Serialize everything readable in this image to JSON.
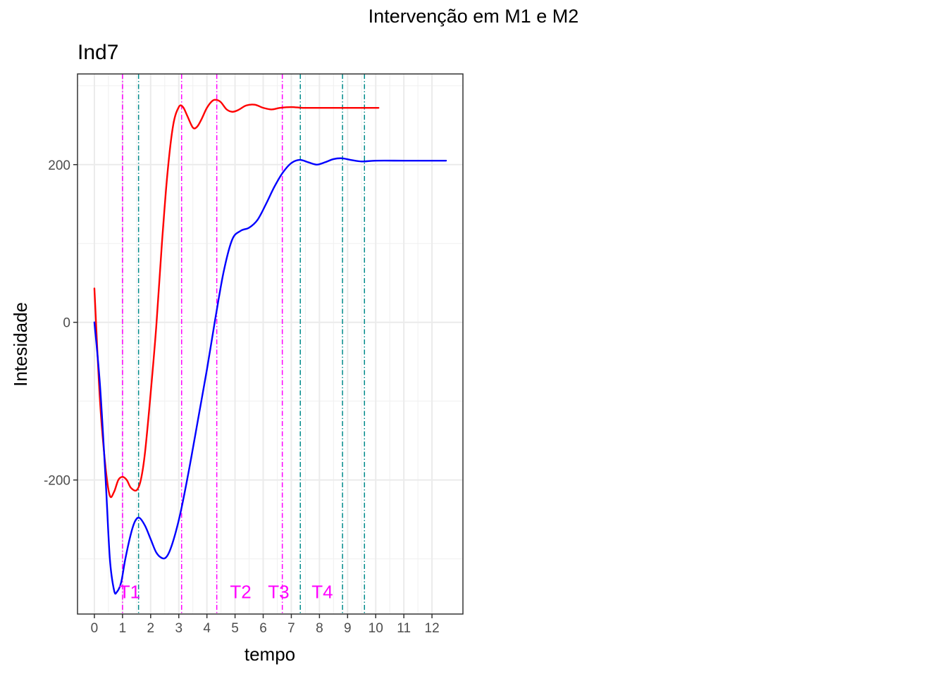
{
  "suptitle": "Intervenção em M1 e M2",
  "chart_data": {
    "type": "line",
    "title": "Ind7",
    "xlabel": "tempo",
    "ylabel": "Intesidade",
    "xlim": [
      -0.6,
      13.1
    ],
    "ylim": [
      -370,
      315
    ],
    "x_ticks": [
      0,
      1,
      2,
      3,
      4,
      5,
      6,
      7,
      8,
      9,
      10,
      11,
      12
    ],
    "y_ticks": [
      -200,
      0,
      200
    ],
    "y_tick_labels": [
      "-200",
      "0",
      "200"
    ],
    "grid": true,
    "legend": "none",
    "series": [
      {
        "color": "#ff0000",
        "points": [
          [
            0,
            43
          ],
          [
            0.2,
            -100
          ],
          [
            0.4,
            -185
          ],
          [
            0.55,
            -220
          ],
          [
            0.7,
            -215
          ],
          [
            0.85,
            -200
          ],
          [
            1.0,
            -196
          ],
          [
            1.15,
            -200
          ],
          [
            1.3,
            -210
          ],
          [
            1.5,
            -213
          ],
          [
            1.65,
            -200
          ],
          [
            1.8,
            -165
          ],
          [
            2.0,
            -90
          ],
          [
            2.2,
            -5
          ],
          [
            2.4,
            100
          ],
          [
            2.6,
            190
          ],
          [
            2.8,
            250
          ],
          [
            3.0,
            273
          ],
          [
            3.15,
            273
          ],
          [
            3.3,
            262
          ],
          [
            3.5,
            247
          ],
          [
            3.65,
            248
          ],
          [
            3.8,
            257
          ],
          [
            4.0,
            272
          ],
          [
            4.2,
            281
          ],
          [
            4.35,
            282
          ],
          [
            4.5,
            279
          ],
          [
            4.7,
            270
          ],
          [
            4.9,
            267
          ],
          [
            5.1,
            269
          ],
          [
            5.4,
            275
          ],
          [
            5.7,
            276
          ],
          [
            6.0,
            272
          ],
          [
            6.3,
            270
          ],
          [
            6.6,
            272
          ],
          [
            7.0,
            273
          ],
          [
            7.4,
            272
          ],
          [
            7.8,
            272
          ],
          [
            8.5,
            272
          ],
          [
            9.5,
            272
          ],
          [
            10.1,
            272
          ]
        ]
      },
      {
        "color": "#0000ff",
        "points": [
          [
            0,
            0
          ],
          [
            0.2,
            -80
          ],
          [
            0.4,
            -200
          ],
          [
            0.55,
            -300
          ],
          [
            0.7,
            -340
          ],
          [
            0.8,
            -342
          ],
          [
            0.95,
            -330
          ],
          [
            1.1,
            -300
          ],
          [
            1.3,
            -268
          ],
          [
            1.45,
            -252
          ],
          [
            1.6,
            -248
          ],
          [
            1.8,
            -258
          ],
          [
            2.0,
            -275
          ],
          [
            2.2,
            -292
          ],
          [
            2.4,
            -299
          ],
          [
            2.55,
            -298
          ],
          [
            2.7,
            -288
          ],
          [
            2.9,
            -265
          ],
          [
            3.1,
            -235
          ],
          [
            3.4,
            -180
          ],
          [
            3.7,
            -120
          ],
          [
            4.0,
            -60
          ],
          [
            4.3,
            5
          ],
          [
            4.6,
            65
          ],
          [
            4.9,
            105
          ],
          [
            5.2,
            116
          ],
          [
            5.5,
            120
          ],
          [
            5.8,
            130
          ],
          [
            6.1,
            150
          ],
          [
            6.4,
            172
          ],
          [
            6.7,
            190
          ],
          [
            7.0,
            202
          ],
          [
            7.3,
            206
          ],
          [
            7.6,
            203
          ],
          [
            7.9,
            200
          ],
          [
            8.2,
            203
          ],
          [
            8.5,
            207
          ],
          [
            8.8,
            208
          ],
          [
            9.1,
            206
          ],
          [
            9.5,
            204
          ],
          [
            10.0,
            205
          ],
          [
            11.0,
            205
          ],
          [
            12.0,
            205
          ],
          [
            12.5,
            205
          ]
        ]
      }
    ],
    "vlines": [
      {
        "x": 1.0,
        "color": "#ff00ff",
        "style": "dotdash"
      },
      {
        "x": 1.57,
        "color": "#008b8b",
        "style": "dotdash"
      },
      {
        "x": 3.1,
        "color": "#ff00ff",
        "style": "dotdash"
      },
      {
        "x": 4.35,
        "color": "#ff00ff",
        "style": "dotdash"
      },
      {
        "x": 6.68,
        "color": "#ff00ff",
        "style": "dotdash"
      },
      {
        "x": 7.32,
        "color": "#008b8b",
        "style": "dotdash"
      },
      {
        "x": 8.82,
        "color": "#008b8b",
        "style": "dotdash"
      },
      {
        "x": 9.6,
        "color": "#008b8b",
        "style": "dotdash"
      }
    ],
    "annotations": [
      {
        "text": "T1",
        "x": 1.25,
        "y": -342,
        "color": "#ff00ff"
      },
      {
        "text": "T2",
        "x": 5.2,
        "y": -342,
        "color": "#ff00ff"
      },
      {
        "text": "T3",
        "x": 6.55,
        "y": -342,
        "color": "#ff00ff"
      },
      {
        "text": "T4",
        "x": 8.1,
        "y": -342,
        "color": "#ff00ff"
      }
    ]
  }
}
